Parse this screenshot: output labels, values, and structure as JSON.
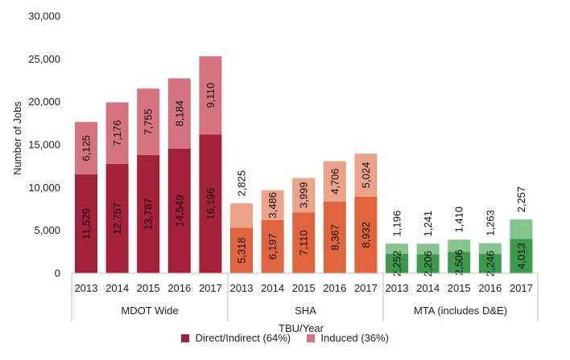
{
  "chart_data": {
    "type": "bar",
    "stacked": true,
    "ylabel": "Number of Jobs",
    "xlabel": "TBU/Year",
    "ylim": [
      0,
      30000
    ],
    "yticks": [
      "0",
      "5,000",
      "10,000",
      "15,000",
      "20,000",
      "25,000",
      "30,000"
    ],
    "ytick_values": [
      0,
      5000,
      10000,
      15000,
      20000,
      25000,
      30000
    ],
    "legend_position": "bottom",
    "series": [
      {
        "name": "Direct/Indirect (64%)",
        "color": "#a52039"
      },
      {
        "name": "Induced (36%)",
        "color": "#d4727e"
      }
    ],
    "groups": [
      {
        "label": "MDOT Wide",
        "colors": {
          "direct": "#a52039",
          "induced": "#d4727e"
        },
        "bars": [
          {
            "year": "2013",
            "direct": 11529,
            "induced": 6125,
            "direct_label": "11,529",
            "induced_label": "6,125"
          },
          {
            "year": "2014",
            "direct": 12757,
            "induced": 7176,
            "direct_label": "12,757",
            "induced_label": "7,176"
          },
          {
            "year": "2015",
            "direct": 13787,
            "induced": 7755,
            "direct_label": "13,787",
            "induced_label": "7,755"
          },
          {
            "year": "2016",
            "direct": 14549,
            "induced": 8184,
            "direct_label": "14,549",
            "induced_label": "8,184"
          },
          {
            "year": "2017",
            "direct": 16196,
            "induced": 9110,
            "direct_label": "16,196",
            "induced_label": "9,110"
          }
        ]
      },
      {
        "label": "SHA",
        "colors": {
          "direct": "#e0653e",
          "induced": "#eda28a"
        },
        "bars": [
          {
            "year": "2013",
            "direct": 5318,
            "induced": 2825,
            "direct_label": "5,318",
            "induced_label": "2,825"
          },
          {
            "year": "2014",
            "direct": 6197,
            "induced": 3486,
            "direct_label": "6,197",
            "induced_label": "3,486"
          },
          {
            "year": "2015",
            "direct": 7110,
            "induced": 3999,
            "direct_label": "7,110",
            "induced_label": "3,999"
          },
          {
            "year": "2016",
            "direct": 8367,
            "induced": 4706,
            "direct_label": "8,367",
            "induced_label": "4,706"
          },
          {
            "year": "2017",
            "direct": 8932,
            "induced": 5024,
            "direct_label": "8,932",
            "induced_label": "5,024"
          }
        ]
      },
      {
        "label": "MTA (includes D&E)",
        "colors": {
          "direct": "#3b9a4c",
          "induced": "#86c58e"
        },
        "bars": [
          {
            "year": "2013",
            "direct": 2252,
            "induced": 1196,
            "direct_label": "2,252",
            "induced_label": "1,196"
          },
          {
            "year": "2014",
            "direct": 2206,
            "induced": 1241,
            "direct_label": "2,206",
            "induced_label": "1,241"
          },
          {
            "year": "2015",
            "direct": 2506,
            "induced": 1410,
            "direct_label": "2,506",
            "induced_label": "1,410"
          },
          {
            "year": "2016",
            "direct": 2246,
            "induced": 1263,
            "direct_label": "2,246",
            "induced_label": "1,263"
          },
          {
            "year": "2017",
            "direct": 4013,
            "induced": 2257,
            "direct_label": "4,013",
            "induced_label": "2,257"
          }
        ]
      }
    ]
  }
}
